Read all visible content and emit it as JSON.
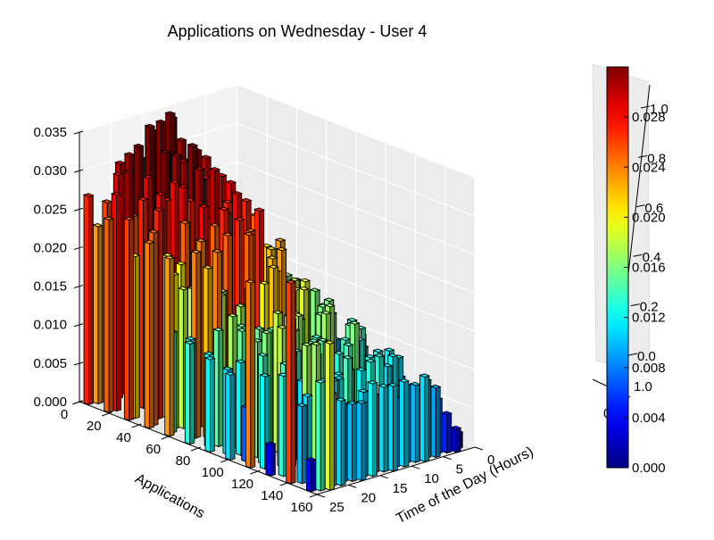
{
  "chart_data": {
    "type": "bar3d",
    "title": "Applications on Wednesday - User 4",
    "xlabel": "Applications",
    "ylabel": "Time of the Day (Hours)",
    "zlabel": "",
    "xlim": [
      0,
      160
    ],
    "ylim": [
      0,
      25
    ],
    "zlim": [
      0,
      0.035
    ],
    "x_ticks": [
      "0",
      "20",
      "40",
      "60",
      "80",
      "100",
      "120",
      "140",
      "160"
    ],
    "y_ticks": [
      "0",
      "5",
      "10",
      "15",
      "20",
      "25"
    ],
    "z_ticks": [
      "0.000",
      "0.005",
      "0.010",
      "0.015",
      "0.020",
      "0.025",
      "0.030",
      "0.035"
    ],
    "colorbar": {
      "colormap": "jet",
      "range": [
        0,
        0.032
      ],
      "ticks": [
        "0.000",
        "0.004",
        "0.008",
        "0.012",
        "0.016",
        "0.020",
        "0.024",
        "0.028"
      ]
    },
    "stray_axis": {
      "ticks": [
        "0.0",
        "0.2",
        "0.4",
        "0.6",
        "0.8",
        "1.0"
      ],
      "extra_labels": [
        "1.0",
        "0"
      ]
    },
    "bars_by_hour": [
      {
        "hour": 0,
        "heights": [
          0.027,
          0.025,
          0.026,
          0.024,
          0.023,
          0.013,
          0.012,
          0.011,
          0.024,
          0.004,
          0.026,
          0.004
        ]
      },
      {
        "hour": 1,
        "heights": [
          0.023,
          0.028,
          0.021,
          0.025,
          0.013,
          0.013,
          0.012,
          0.011,
          0.007,
          0.012,
          0.013,
          0.01,
          0.014
        ]
      },
      {
        "hour": 2,
        "heights": [
          0.026,
          0.031,
          0.022,
          0.02,
          0.024,
          0.015,
          0.012,
          0.014,
          0.014,
          0.011,
          0.019
        ]
      },
      {
        "hour": 3,
        "heights": [
          0.022,
          0.025,
          0.027,
          0.018,
          0.022,
          0.017,
          0.015,
          0.018,
          0.017,
          0.012
        ]
      },
      {
        "hour": 4,
        "heights": [
          0.029,
          0.027,
          0.021,
          0.018,
          0.024,
          0.015,
          0.016,
          0.019,
          0.017,
          0.011
        ]
      },
      {
        "hour": 5,
        "heights": [
          0.03,
          0.023,
          0.028,
          0.02,
          0.024,
          0.018,
          0.015,
          0.014,
          0.012,
          0.011,
          0.012,
          0.01
        ]
      },
      {
        "hour": 6,
        "heights": [
          0.031,
          0.029,
          0.027,
          0.025,
          0.028,
          0.018,
          0.017,
          0.015,
          0.018,
          0.014,
          0.011,
          0.012,
          0.01
        ]
      },
      {
        "hour": 7,
        "heights": [
          0.032,
          0.024,
          0.029,
          0.026,
          0.025,
          0.019,
          0.015,
          0.016,
          0.014,
          0.012,
          0.01
        ]
      },
      {
        "hour": 8,
        "heights": [
          0.03,
          0.032,
          0.027,
          0.025,
          0.027,
          0.02,
          0.017,
          0.015,
          0.012,
          0.011
        ]
      },
      {
        "hour": 9,
        "heights": [
          0.034,
          0.028,
          0.031,
          0.027,
          0.025,
          0.022,
          0.017,
          0.015,
          0.014,
          0.012
        ]
      },
      {
        "hour": 10,
        "heights": [
          0.033,
          0.031,
          0.029,
          0.026,
          0.025,
          0.021,
          0.016,
          0.014,
          0.012,
          0.01
        ]
      },
      {
        "hour": 11,
        "heights": [
          0.034,
          0.03,
          0.029,
          0.027,
          0.024,
          0.022,
          0.016,
          0.014,
          0.013,
          0.012,
          0.011
        ]
      },
      {
        "hour": 12,
        "heights": [
          0.035,
          0.032,
          0.03,
          0.028,
          0.027,
          0.023,
          0.019,
          0.017,
          0.014,
          0.013,
          0.011
        ]
      },
      {
        "hour": 13,
        "heights": [
          0.034,
          0.031,
          0.029,
          0.027,
          0.022,
          0.018,
          0.016,
          0.014,
          0.013,
          0.009
        ]
      },
      {
        "hour": 14,
        "heights": [
          0.031,
          0.03,
          0.028,
          0.025,
          0.023,
          0.019,
          0.017,
          0.016,
          0.013,
          0.011
        ]
      },
      {
        "hour": 15,
        "heights": [
          0.028,
          0.027,
          0.024,
          0.021,
          0.018,
          0.016,
          0.015,
          0.013,
          0.01
        ]
      },
      {
        "hour": 16,
        "heights": [
          0.026,
          0.024,
          0.022,
          0.019,
          0.017,
          0.015,
          0.013,
          0.011,
          0.01
        ]
      },
      {
        "hour": 17,
        "heights": [
          0.024,
          0.021,
          0.019,
          0.017,
          0.016,
          0.014,
          0.012,
          0.011
        ]
      },
      {
        "hour": 18,
        "heights": [
          0.022,
          0.019,
          0.017,
          0.016,
          0.014,
          0.012,
          0.01
        ]
      },
      {
        "hour": 19,
        "heights": [
          0.019,
          0.018,
          0.016,
          0.014,
          0.012,
          0.011,
          0.009
        ]
      },
      {
        "hour": 20,
        "heights": [
          0.017,
          0.015,
          0.014,
          0.012,
          0.01,
          0.008,
          0.007
        ]
      },
      {
        "hour": 21,
        "heights": [
          0.014,
          0.013,
          0.011,
          0.009,
          0.008,
          0.006,
          0.005
        ]
      },
      {
        "hour": 22,
        "heights": [
          0.012,
          0.01,
          0.009,
          0.007,
          0.006,
          0.004,
          0.003
        ]
      },
      {
        "hour": 23,
        "heights": [
          0.009,
          0.008,
          0.007,
          0.005,
          0.004,
          0.003,
          0.002
        ]
      }
    ]
  }
}
